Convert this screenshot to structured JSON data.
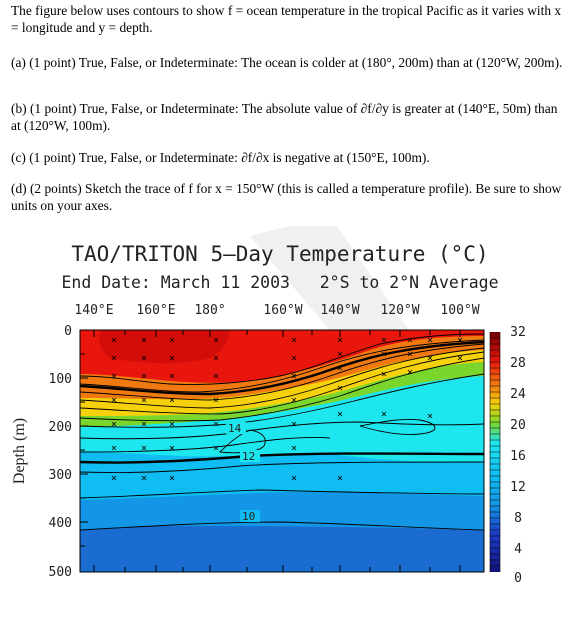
{
  "question": {
    "intro": "The figure below uses contours to show f = ocean temperature in the tropical Pacific as it varies with x = longitude and y = depth.",
    "part_a": "(a) (1 point) True, False, or Indeterminate: The ocean is colder at (180°, 200m) than at (120°W, 200m).",
    "part_b": "(b) (1 point) True, False, or Indeterminate: The absolute value of ∂f/∂y is greater at (140°E, 50m) than at (120°W, 100m).",
    "part_c": "(c) (1 point) True, False, or Indeterminate: ∂f/∂x is negative at (150°E, 100m).",
    "part_d": "(d) (2 points) Sketch the trace of f for x = 150°W (this is called a temperature profile). Be sure to show units on your axes."
  },
  "figure": {
    "title": "TAO/TRITON 5–Day Temperature (°C)",
    "subtitle": "End Date: March 11 2003   2°S to 2°N Average",
    "x_tick_labels": [
      "140°E",
      "160°E",
      "180°",
      "160°W",
      "140°W",
      "120°W",
      "100°W"
    ],
    "y_label": "Depth (m)",
    "y_tick_labels": [
      "0",
      "100",
      "200",
      "300",
      "400",
      "500"
    ],
    "colorbar_labels": [
      "32",
      "28",
      "24",
      "20",
      "16",
      "12",
      "8",
      "4",
      "0"
    ],
    "contour_labels": [
      "14",
      "12",
      "10"
    ]
  },
  "colors": {
    "red": "#e8160c",
    "orange": "#f07a10",
    "yellow": "#f6d20c",
    "green": "#7ad62c",
    "cyan": "#1ee6ef",
    "sky": "#0fbdf2",
    "blue": "#1396e6",
    "deep_blue": "#1a6cd0"
  }
}
